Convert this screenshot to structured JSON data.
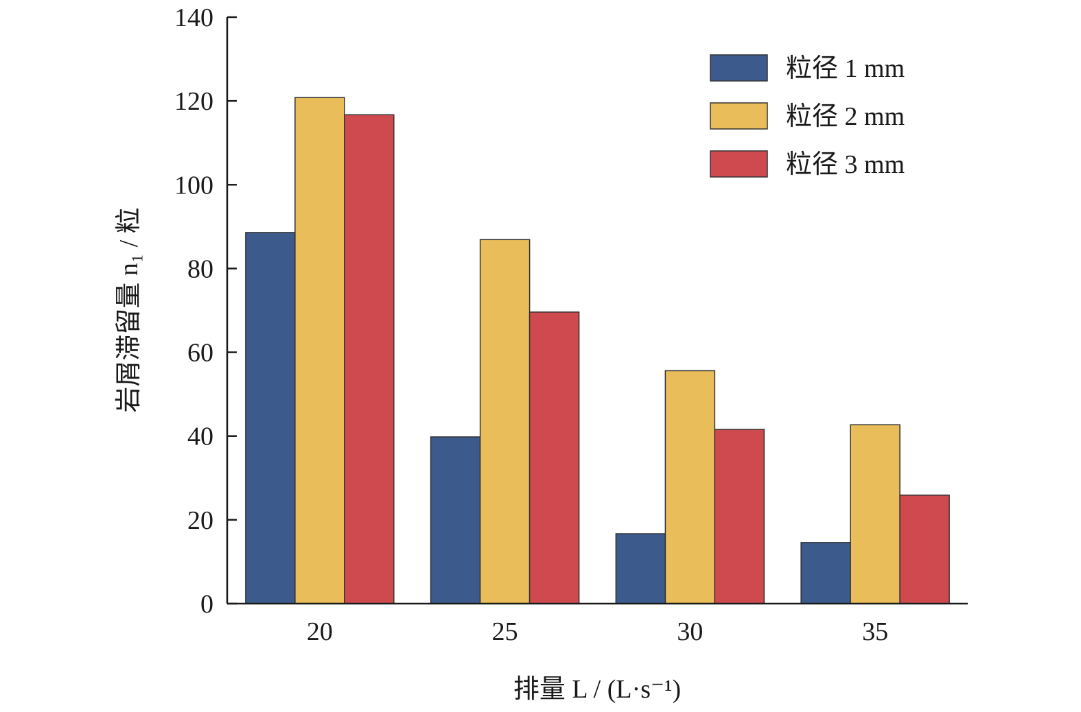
{
  "chart_data": {
    "type": "bar",
    "xlabel": "排量 L / (L·s⁻¹)",
    "ylabel": "岩屑滞留量 n₁ / 粒",
    "categories": [
      "20",
      "25",
      "30",
      "35"
    ],
    "ylim": [
      0,
      140
    ],
    "yticks": [
      "0",
      "20",
      "40",
      "60",
      "80",
      "100",
      "120",
      "140"
    ],
    "grid": false,
    "legend_position": "top-right",
    "series": [
      {
        "name": "粒径 1 mm",
        "color": "#3d5a8c",
        "values": [
          88.6,
          39.8,
          16.7,
          14.6
        ]
      },
      {
        "name": "粒径 2 mm",
        "color": "#e8bd5a",
        "values": [
          120.8,
          86.9,
          55.6,
          42.7
        ]
      },
      {
        "name": "粒径 3 mm",
        "color": "#cf4a4f",
        "values": [
          116.7,
          69.6,
          41.6,
          25.9
        ]
      }
    ]
  }
}
